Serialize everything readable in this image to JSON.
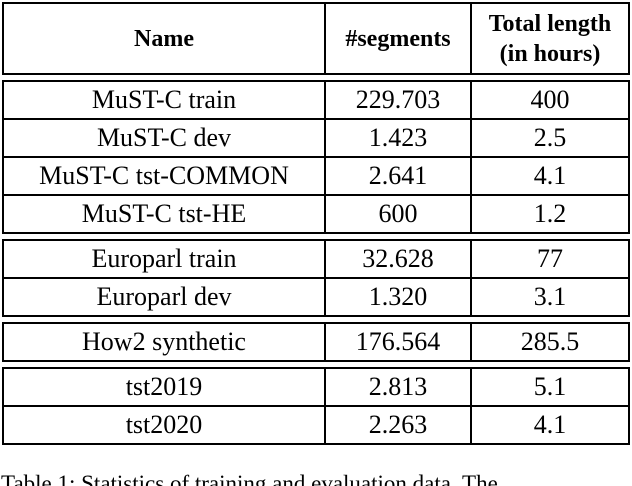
{
  "table": {
    "columns": [
      "Name",
      "#segments",
      "Total length (in hours)"
    ],
    "sections": [
      {
        "rows": [
          {
            "name": "MuST-C train",
            "segments": "229.703",
            "hours": "400"
          },
          {
            "name": "MuST-C dev",
            "segments": "1.423",
            "hours": "2.5"
          },
          {
            "name": "MuST-C tst-COMMON",
            "segments": "2.641",
            "hours": "4.1"
          },
          {
            "name": "MuST-C tst-HE",
            "segments": "600",
            "hours": "1.2"
          }
        ]
      },
      {
        "rows": [
          {
            "name": "Europarl train",
            "segments": "32.628",
            "hours": "77"
          },
          {
            "name": "Europarl dev",
            "segments": "1.320",
            "hours": "3.1"
          }
        ]
      },
      {
        "rows": [
          {
            "name": "How2 synthetic",
            "segments": "176.564",
            "hours": "285.5"
          }
        ]
      },
      {
        "rows": [
          {
            "name": "tst2019",
            "segments": "2.813",
            "hours": "5.1"
          },
          {
            "name": "tst2020",
            "segments": "2.263",
            "hours": "4.1"
          }
        ]
      }
    ]
  },
  "caption": "Table 1: Statistics of training and evaluation data. The",
  "colors": {
    "border": "#000000",
    "text": "#000000",
    "background": "#ffffff"
  }
}
